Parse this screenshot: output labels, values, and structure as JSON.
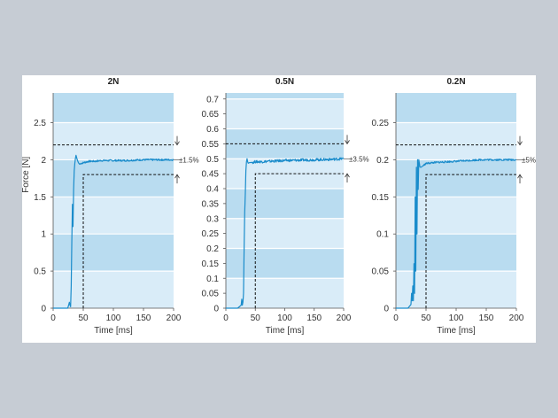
{
  "chart_data": [
    {
      "type": "line",
      "title": "2N",
      "xlabel": "Time [ms]",
      "ylabel": "Force [N]",
      "xlim": [
        0,
        200
      ],
      "ylim": [
        0,
        2.9
      ],
      "xticks": [
        "0",
        "50",
        "100",
        "150",
        "200"
      ],
      "yticks": [
        "0",
        "0.5",
        "1",
        "1.5",
        "2",
        "2.5"
      ],
      "target": 2.0,
      "tolerance_label": "±1.5%",
      "band_high": 2.2,
      "band_low": 1.8,
      "settle_time": 50,
      "grid": true,
      "series": [
        {
          "x": [
            0,
            24,
            25,
            26,
            27,
            28,
            29,
            30,
            31,
            32,
            33,
            34,
            35,
            36,
            37,
            38,
            40,
            42,
            44,
            46,
            50,
            55,
            60,
            70,
            80,
            100,
            120,
            150,
            170,
            200
          ],
          "y": [
            0,
            0,
            0.02,
            0.05,
            0.08,
            0.04,
            0.02,
            0.3,
            0.9,
            1.4,
            1.1,
            1.6,
            1.85,
            1.95,
            2.02,
            2.06,
            2.0,
            1.96,
            1.94,
            1.95,
            1.96,
            1.97,
            1.98,
            1.98,
            1.99,
            1.99,
            1.99,
            2.0,
            2.0,
            2.0
          ]
        }
      ]
    },
    {
      "type": "line",
      "title": "0.5N",
      "xlabel": "Time [ms]",
      "ylabel": "",
      "xlim": [
        0,
        200
      ],
      "ylim": [
        0,
        0.72
      ],
      "xticks": [
        "0",
        "50",
        "100",
        "150",
        "200"
      ],
      "yticks": [
        "0",
        "0.05",
        "0.1",
        "0.15",
        "0.2",
        "0.25",
        "0.3",
        "0.35",
        "0.4",
        "0.45",
        "0.5",
        "0.55",
        "0.6",
        "0.65",
        "0.7"
      ],
      "target": 0.5,
      "tolerance_label": "±3.5%",
      "band_high": 0.55,
      "band_low": 0.45,
      "settle_time": 50,
      "grid": true,
      "series": [
        {
          "x": [
            0,
            20,
            26,
            27,
            28,
            29,
            30,
            31,
            32,
            33,
            34,
            35,
            36,
            37,
            38,
            40,
            45,
            50,
            60,
            80,
            100,
            120,
            140,
            160,
            180,
            200
          ],
          "y": [
            0,
            0,
            0.01,
            0.03,
            0.01,
            0.02,
            0.05,
            0.2,
            0.32,
            0.38,
            0.46,
            0.49,
            0.5,
            0.49,
            0.485,
            0.487,
            0.488,
            0.49,
            0.49,
            0.492,
            0.494,
            0.495,
            0.496,
            0.497,
            0.498,
            0.5
          ]
        }
      ]
    },
    {
      "type": "line",
      "title": "0.2N",
      "xlabel": "Time [ms]",
      "ylabel": "",
      "xlim": [
        0,
        200
      ],
      "ylim": [
        0,
        0.29
      ],
      "xticks": [
        "0",
        "50",
        "100",
        "150",
        "200"
      ],
      "yticks": [
        "0",
        "0.05",
        "0.1",
        "0.15",
        "0.2",
        "0.25"
      ],
      "target": 0.2,
      "tolerance_label": "±5%",
      "band_high": 0.22,
      "band_low": 0.18,
      "settle_time": 50,
      "grid": true,
      "series": [
        {
          "x": [
            0,
            20,
            25,
            26,
            27,
            28,
            29,
            30,
            31,
            32,
            33,
            34,
            35,
            36,
            37,
            38,
            40,
            42,
            45,
            50,
            60,
            80,
            100,
            120,
            140,
            160,
            180,
            200
          ],
          "y": [
            0,
            0,
            0.005,
            0.02,
            0.01,
            0.03,
            0.01,
            0.06,
            0.02,
            0.15,
            0.05,
            0.19,
            0.1,
            0.2,
            0.16,
            0.2,
            0.19,
            0.19,
            0.192,
            0.195,
            0.196,
            0.197,
            0.198,
            0.199,
            0.2,
            0.2,
            0.2,
            0.2
          ]
        }
      ]
    }
  ]
}
